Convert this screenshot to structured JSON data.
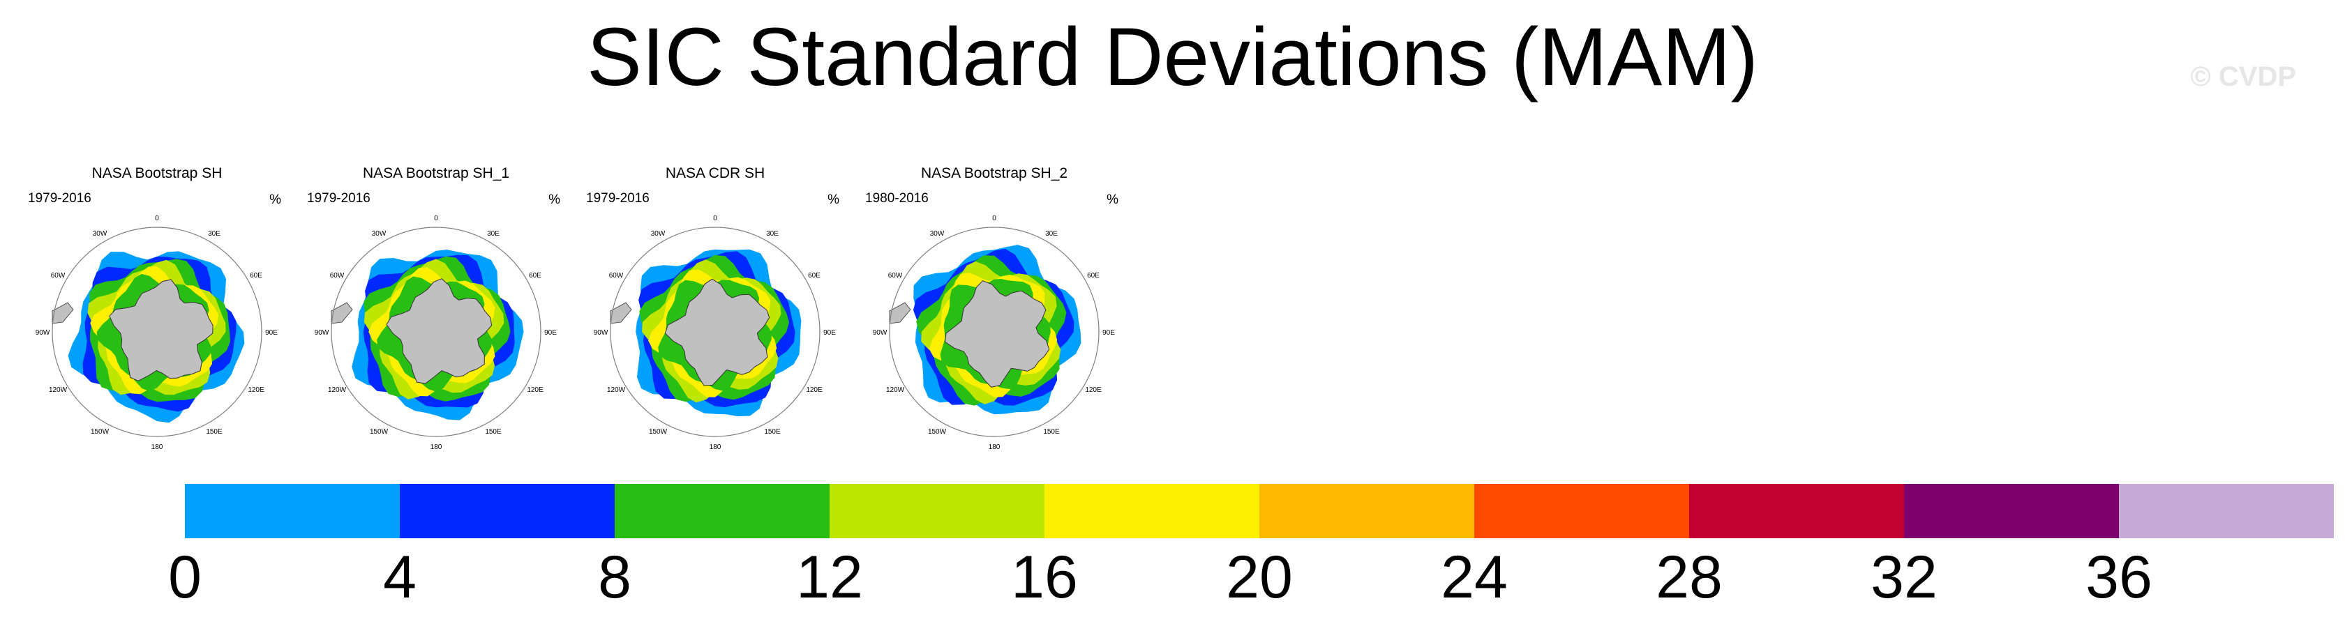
{
  "title": "SIC Standard Deviations (MAM)",
  "watermark": "© CVDP",
  "panels": [
    {
      "name": "NASA Bootstrap SH",
      "period": "1979-2016",
      "unit": "%"
    },
    {
      "name": "NASA Bootstrap SH_1",
      "period": "1979-2016",
      "unit": "%"
    },
    {
      "name": "NASA CDR SH",
      "period": "1979-2016",
      "unit": "%"
    },
    {
      "name": "NASA Bootstrap SH_2",
      "period": "1980-2016",
      "unit": "%"
    }
  ],
  "lon_labels": [
    "0",
    "30E",
    "60E",
    "90E",
    "120E",
    "150E",
    "180",
    "150W",
    "120W",
    "90W",
    "60W",
    "30W"
  ],
  "colorbar": {
    "colors": [
      "#00a0ff",
      "#0028ff",
      "#28be14",
      "#bee600",
      "#fff000",
      "#ffb900",
      "#ff4b00",
      "#c30032",
      "#7d006e",
      "#c8aad7"
    ],
    "ticks": [
      "0",
      "4",
      "8",
      "12",
      "16",
      "20",
      "24",
      "28",
      "32",
      "36"
    ]
  },
  "colors": {
    "land": "#c0c0c0",
    "circle": "#808080"
  }
}
